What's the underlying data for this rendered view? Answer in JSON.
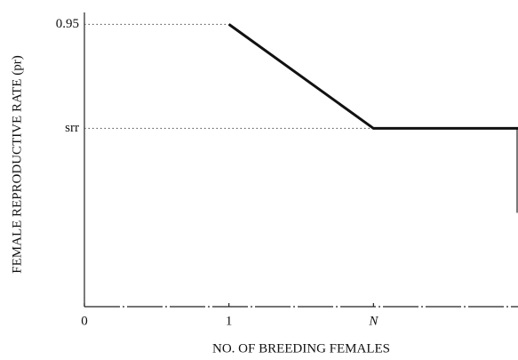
{
  "chart_data": {
    "type": "line",
    "x_label": "NO. OF BREEDING FEMALES",
    "y_label": "FEMALE REPRODUCTIVE RATE (pr)",
    "x": [
      1,
      2,
      3
    ],
    "values": [
      0.95,
      0.6,
      0.6
    ],
    "color": "#111111",
    "xlim": [
      0,
      3
    ],
    "xticks": [
      0,
      1,
      {
        "value": 2,
        "label": "N"
      }
    ],
    "ylim": [
      0,
      1.02
    ],
    "yticks": [
      0.95,
      {
        "value": 0.6,
        "label": "srr"
      }
    ],
    "grid": true
  }
}
